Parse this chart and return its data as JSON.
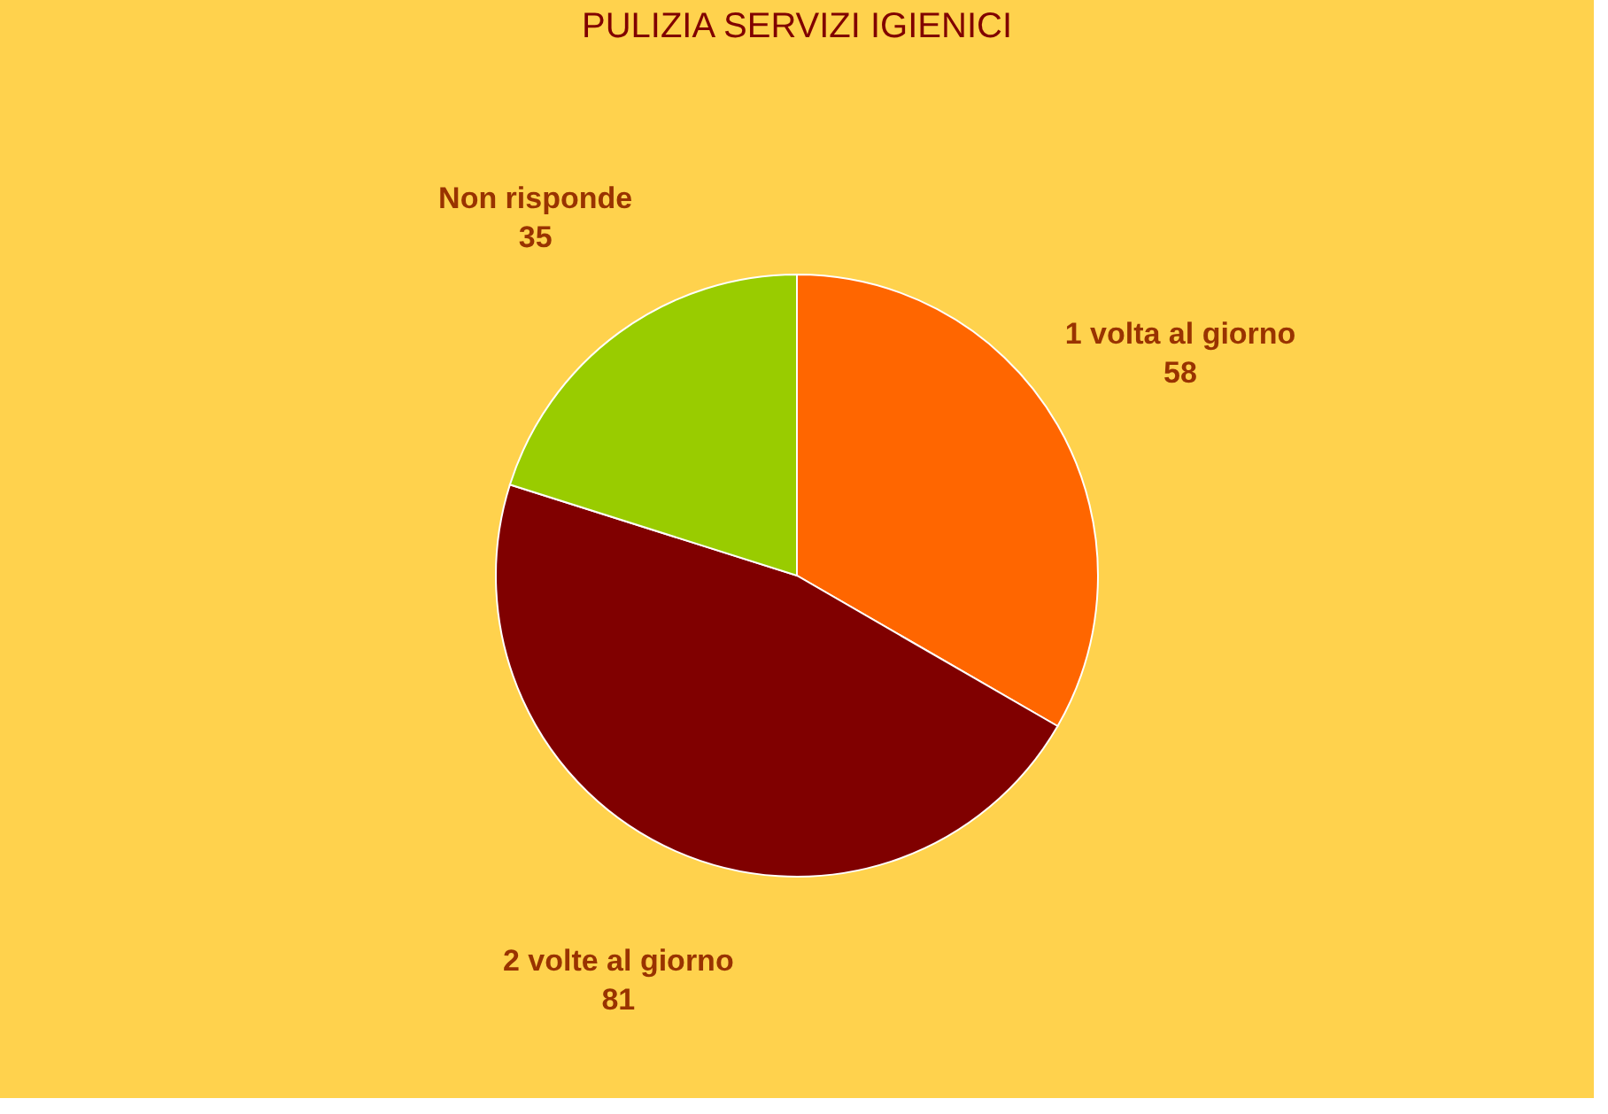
{
  "chart_data": {
    "type": "pie",
    "title": "PULIZIA SERVIZI IGIENICI",
    "categories": [
      "1 volta al giorno",
      "2 volte al giorno",
      "Non risponde"
    ],
    "values": [
      58,
      81,
      35
    ],
    "colors": [
      "#ff6600",
      "#800000",
      "#99cc00"
    ],
    "data_labels": true,
    "legend": false
  }
}
